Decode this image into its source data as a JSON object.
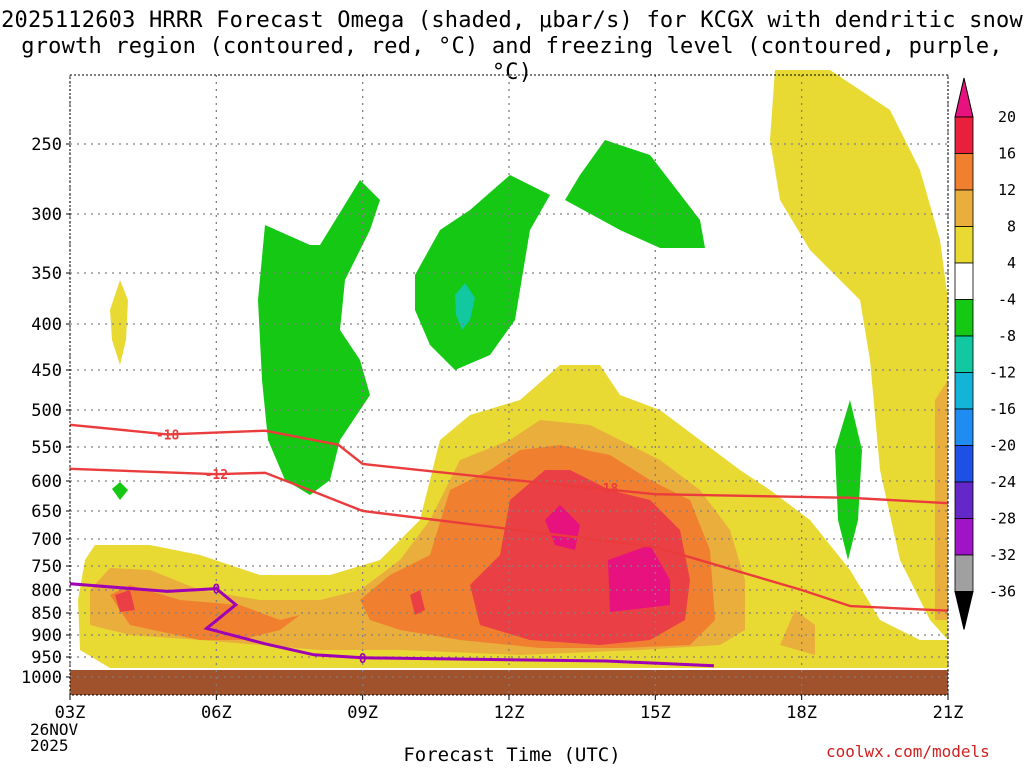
{
  "title_line1": "2025112603 HRRR Forecast Omega (shaded, μbar/s) for KCGX with dendritic snow",
  "title_line2": "growth region (contoured, red, °C) and freezing level (contoured, purple, °C)",
  "xlabel": "Forecast Time (UTC)",
  "credit": "coolwx.com/models",
  "date_line1": "26NOV",
  "date_line2": "2025",
  "chart_data": {
    "type": "heatmap",
    "title": "2025112603 HRRR Forecast Omega (shaded, μbar/s) for KCGX with dendritic snow growth region (contoured, red, °C) and freezing level (contoured, purple, °C)",
    "xlabel": "Forecast Time (UTC)",
    "ylabel": "",
    "x_ticks": [
      "03Z",
      "06Z",
      "09Z",
      "12Z",
      "15Z",
      "18Z",
      "21Z"
    ],
    "x_hours": [
      3,
      6,
      9,
      12,
      15,
      18,
      21
    ],
    "xlim": [
      3,
      21
    ],
    "y_ticks": [
      250,
      300,
      350,
      400,
      450,
      500,
      550,
      600,
      650,
      700,
      750,
      800,
      850,
      900,
      950,
      1000
    ],
    "ylim_hpa": [
      200,
      1000
    ],
    "grid": true,
    "colorbar": {
      "labels": [
        "20",
        "16",
        "12",
        "8",
        "4",
        "-4",
        "-8",
        "-12",
        "-16",
        "-20",
        "-24",
        "-28",
        "-32",
        "-36"
      ],
      "colors": [
        "#ea1f3c",
        "#f08030",
        "#e9ae3c",
        "#e9da33",
        "#ffffff",
        "#14c814",
        "#12c8a0",
        "#14b4d8",
        "#1e8cf0",
        "#1e50e6",
        "#6428c8",
        "#a014c8",
        "#a0a0a0"
      ],
      "top_arrow_color": "#e8127f",
      "bottom_arrow_color": "#000000"
    },
    "contours": [
      {
        "label": "-18",
        "color": "#ea3c3c",
        "points": [
          [
            3.0,
            520
          ],
          [
            5.0,
            533
          ],
          [
            7.0,
            528
          ],
          [
            8.5,
            547
          ],
          [
            9.0,
            575
          ],
          [
            12.0,
            598
          ],
          [
            15.0,
            622
          ],
          [
            19.0,
            628
          ],
          [
            21.0,
            637
          ]
        ]
      },
      {
        "label": "-12",
        "color": "#ea3c3c",
        "points": [
          [
            3.0,
            582
          ],
          [
            6.0,
            590
          ],
          [
            7.0,
            588
          ],
          [
            8.0,
            618
          ],
          [
            9.0,
            650
          ],
          [
            12.0,
            682
          ],
          [
            15.0,
            715
          ],
          [
            18.0,
            800
          ],
          [
            19.0,
            835
          ],
          [
            21.0,
            845
          ]
        ]
      },
      {
        "label": "0",
        "color": "#a000b4",
        "points": [
          [
            3.0,
            787
          ],
          [
            5.0,
            803
          ],
          [
            6.0,
            797
          ],
          [
            6.4,
            832
          ],
          [
            5.8,
            885
          ],
          [
            7.0,
            920
          ],
          [
            8.0,
            945
          ],
          [
            9.0,
            952
          ],
          [
            12.0,
            957
          ],
          [
            14.0,
            960
          ],
          [
            16.2,
            972
          ]
        ]
      }
    ],
    "regions": [
      {
        "value": "4 to 8",
        "color": "#e9da33",
        "desc": "upper-right large yellow lobe 17.5Z-21Z above 250 hPa to 950 hPa"
      },
      {
        "value": "-4 to -8",
        "color": "#14c814",
        "desc": "green lobes 07Z-15Z between 250 and 620 hPa, and 19Z near 600 hPa"
      },
      {
        "value": "16 to 20",
        "color": "#e8127f",
        "desc": "magenta maxima near 13Z 680 hPa and 14.5Z 800 hPa"
      }
    ]
  }
}
